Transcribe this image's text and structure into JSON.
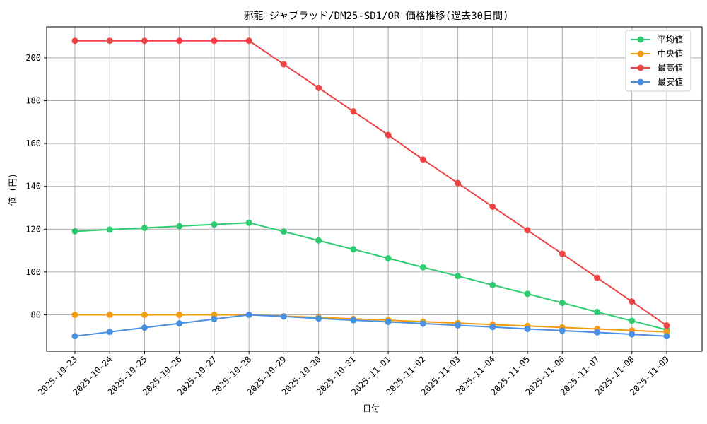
{
  "chart_data": {
    "type": "line",
    "title": "邪龍 ジャブラッド/DM25-SD1/OR 価格推移(過去30日間)",
    "xlabel": "日付",
    "ylabel": "値 (円)",
    "categories": [
      "2025-10-23",
      "2025-10-24",
      "2025-10-25",
      "2025-10-26",
      "2025-10-27",
      "2025-10-28",
      "2025-10-29",
      "2025-10-30",
      "2025-10-31",
      "2025-11-01",
      "2025-11-02",
      "2025-11-03",
      "2025-11-04",
      "2025-11-05",
      "2025-11-06",
      "2025-11-07",
      "2025-11-08",
      "2025-11-09"
    ],
    "ylim": [
      63,
      214.5
    ],
    "yticks": [
      80,
      100,
      120,
      140,
      160,
      180,
      200
    ],
    "grid": true,
    "legend_position": "top-right",
    "series": [
      {
        "name": "平均値",
        "color": "#2ecc71",
        "values": [
          119,
          119.8,
          120.6,
          121.4,
          122.2,
          123,
          118.9,
          114.7,
          110.6,
          106.4,
          102.2,
          98.1,
          93.9,
          89.8,
          85.6,
          81.3,
          77.2,
          73
        ]
      },
      {
        "name": "中央値",
        "color": "#f39c12",
        "values": [
          80,
          80,
          80,
          80,
          80,
          80,
          79.4,
          78.8,
          78.1,
          77.5,
          76.8,
          76.1,
          75.4,
          74.8,
          74.1,
          73.4,
          72.7,
          72
        ]
      },
      {
        "name": "最高値",
        "color": "#ef4444",
        "values": [
          208,
          208,
          208,
          208,
          208,
          208,
          197,
          186,
          175,
          164,
          152.5,
          141.5,
          130.5,
          119.5,
          108.5,
          97.3,
          86.2,
          75
        ]
      },
      {
        "name": "最安値",
        "color": "#4a90e2",
        "values": [
          70,
          72,
          74,
          76,
          78,
          80,
          79.2,
          78.3,
          77.5,
          76.7,
          75.9,
          75.1,
          74.3,
          73.4,
          72.6,
          71.8,
          70.9,
          70
        ]
      }
    ]
  }
}
